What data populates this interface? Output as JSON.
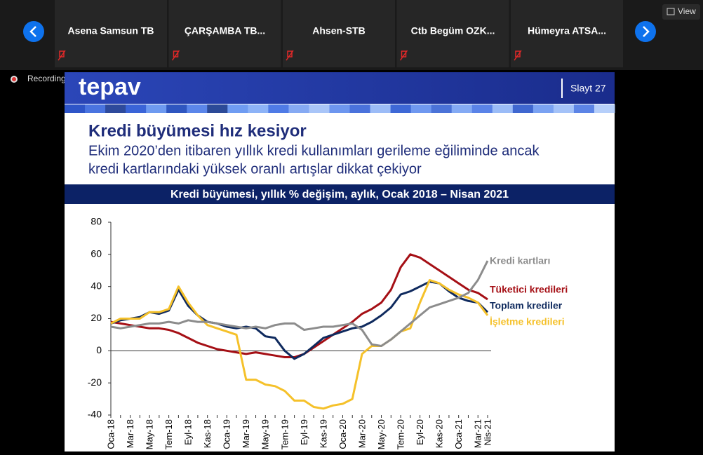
{
  "toolbar": {
    "participants": [
      "Asena Samsun TB",
      "ÇARŞAMBA  TB...",
      "Ahsen-STB",
      "Ctb  Begüm  OZK...",
      "Hümeyra  ATSA..."
    ],
    "view": "View"
  },
  "recording": "Recording...",
  "slide": {
    "logo": "tepav",
    "slide_number": "Slayt 27",
    "title": "Kredi büyümesi hız kesiyor",
    "subtitle_lines": [
      "Ekim 2020’den itibaren yıllık kredi kullanımları gerileme eğiliminde ancak",
      "kredi kartlarındaki yüksek oranlı artışlar dikkat çekiyor"
    ]
  },
  "chart_data": {
    "type": "line",
    "title": "Kredi büyümesi, yıllık % değişim, aylık, Ocak 2018 – Nisan  2021",
    "categories": [
      "Oca-18",
      null,
      "Mar-18",
      null,
      "May-18",
      null,
      "Tem-18",
      null,
      "Eyl-18",
      null,
      "Kas-18",
      null,
      "Oca-19",
      null,
      "Mar-19",
      null,
      "May-19",
      null,
      "Tem-19",
      null,
      "Eyl-19",
      null,
      "Kas-19",
      null,
      "Oca-20",
      null,
      "Mar-20",
      null,
      "May-20",
      null,
      "Tem-20",
      null,
      "Eyl-20",
      null,
      "Kas-20",
      null,
      "Oca-21",
      null,
      "Mar-21",
      "Nis-21"
    ],
    "series": [
      {
        "name": "Kredi kartları",
        "color": "#8c8c8c",
        "values": [
          15,
          14,
          15,
          16,
          17,
          17,
          18,
          17,
          19,
          18,
          18,
          17,
          16,
          15,
          14,
          15,
          14,
          16,
          17,
          17,
          13,
          14,
          15,
          15,
          16,
          17,
          13,
          4,
          3,
          7,
          12,
          17,
          22,
          27,
          29,
          31,
          33,
          36,
          44,
          56
        ]
      },
      {
        "name": "Tüketici kredileri",
        "color": "#a50f15",
        "values": [
          18,
          17,
          16,
          15,
          14,
          14,
          13,
          11,
          8,
          5,
          3,
          1,
          0,
          -1,
          -2,
          -1,
          -2,
          -3,
          -4,
          -4,
          -2,
          2,
          6,
          10,
          14,
          18,
          23,
          26,
          30,
          38,
          52,
          60,
          58,
          54,
          50,
          46,
          42,
          38,
          36,
          32
        ]
      },
      {
        "name": "Toplam krediler",
        "color": "#0f2a5e",
        "values": [
          17,
          19,
          20,
          21,
          24,
          23,
          25,
          38,
          28,
          22,
          18,
          17,
          15,
          14,
          15,
          14,
          9,
          8,
          0,
          -5,
          -2,
          3,
          8,
          10,
          12,
          14,
          15,
          18,
          22,
          27,
          35,
          37,
          40,
          43,
          42,
          37,
          33,
          31,
          30,
          24
        ]
      },
      {
        "name": "İşletme kredileri",
        "color": "#f5c12a",
        "values": [
          17,
          20,
          20,
          20,
          24,
          24,
          26,
          40,
          30,
          22,
          16,
          14,
          12,
          10,
          -18,
          -18,
          -21,
          -22,
          -25,
          -31,
          -31,
          -35,
          -36,
          -34,
          -33,
          -30,
          -2,
          3,
          3,
          7,
          12,
          14,
          30,
          44,
          42,
          38,
          35,
          33,
          30,
          22
        ]
      }
    ],
    "ylim": [
      -40,
      80
    ],
    "yticks": [
      -40,
      -20,
      0,
      20,
      40,
      60,
      80
    ]
  }
}
